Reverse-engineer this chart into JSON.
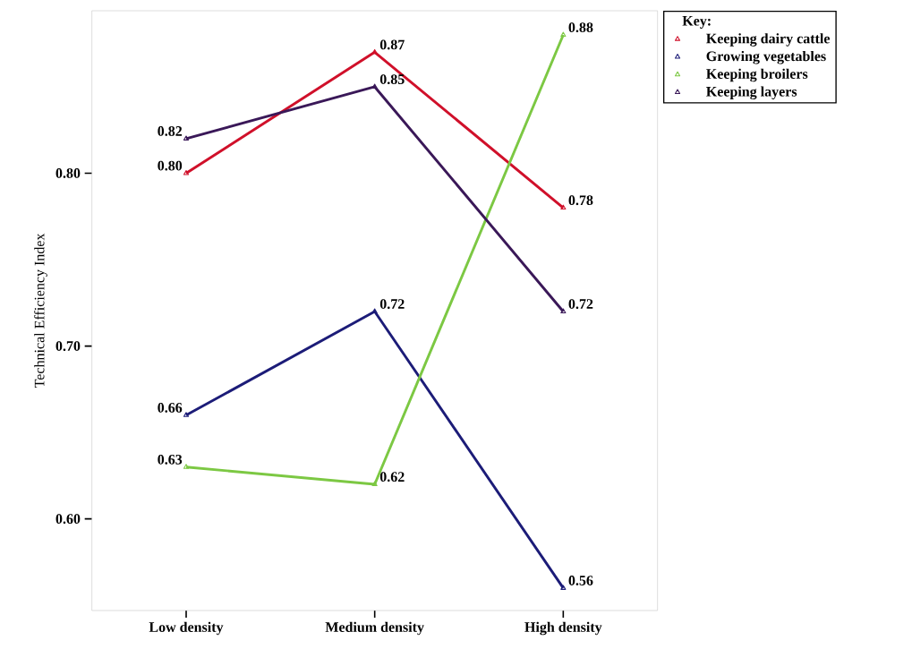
{
  "chart_data": {
    "type": "line",
    "ylabel": "Technical Efficiency Index",
    "legend_title": "Key:",
    "categories": [
      "Low density",
      "Medium density",
      "High density"
    ],
    "series": [
      {
        "name": "Keeping dairy cattle",
        "color": "#d0102a",
        "values": [
          0.8,
          0.87,
          0.78
        ],
        "value_labels": [
          "0.80",
          "0.87",
          "0.78"
        ]
      },
      {
        "name": "Growing vegetables",
        "color": "#1c1c78",
        "values": [
          0.66,
          0.72,
          0.56
        ],
        "value_labels": [
          "0.66",
          "0.72",
          "0.56"
        ]
      },
      {
        "name": "Keeping broilers",
        "color": "#7cc843",
        "values": [
          0.63,
          0.62,
          0.88
        ],
        "value_labels": [
          "0.63",
          "0.62",
          "0.88"
        ]
      },
      {
        "name": "Keeping layers",
        "color": "#3a1858",
        "values": [
          0.82,
          0.85,
          0.72
        ],
        "value_labels": [
          "0.82",
          "0.85",
          "0.72"
        ]
      }
    ],
    "ylim": [
      0.547,
      0.894
    ],
    "yticks": [
      {
        "value": 0.6,
        "label": "0.60"
      },
      {
        "value": 0.7,
        "label": "0.70"
      },
      {
        "value": 0.8,
        "label": "0.80"
      }
    ],
    "legend": "top right",
    "marker": "triangle",
    "line_style": "solid",
    "grid": false
  }
}
